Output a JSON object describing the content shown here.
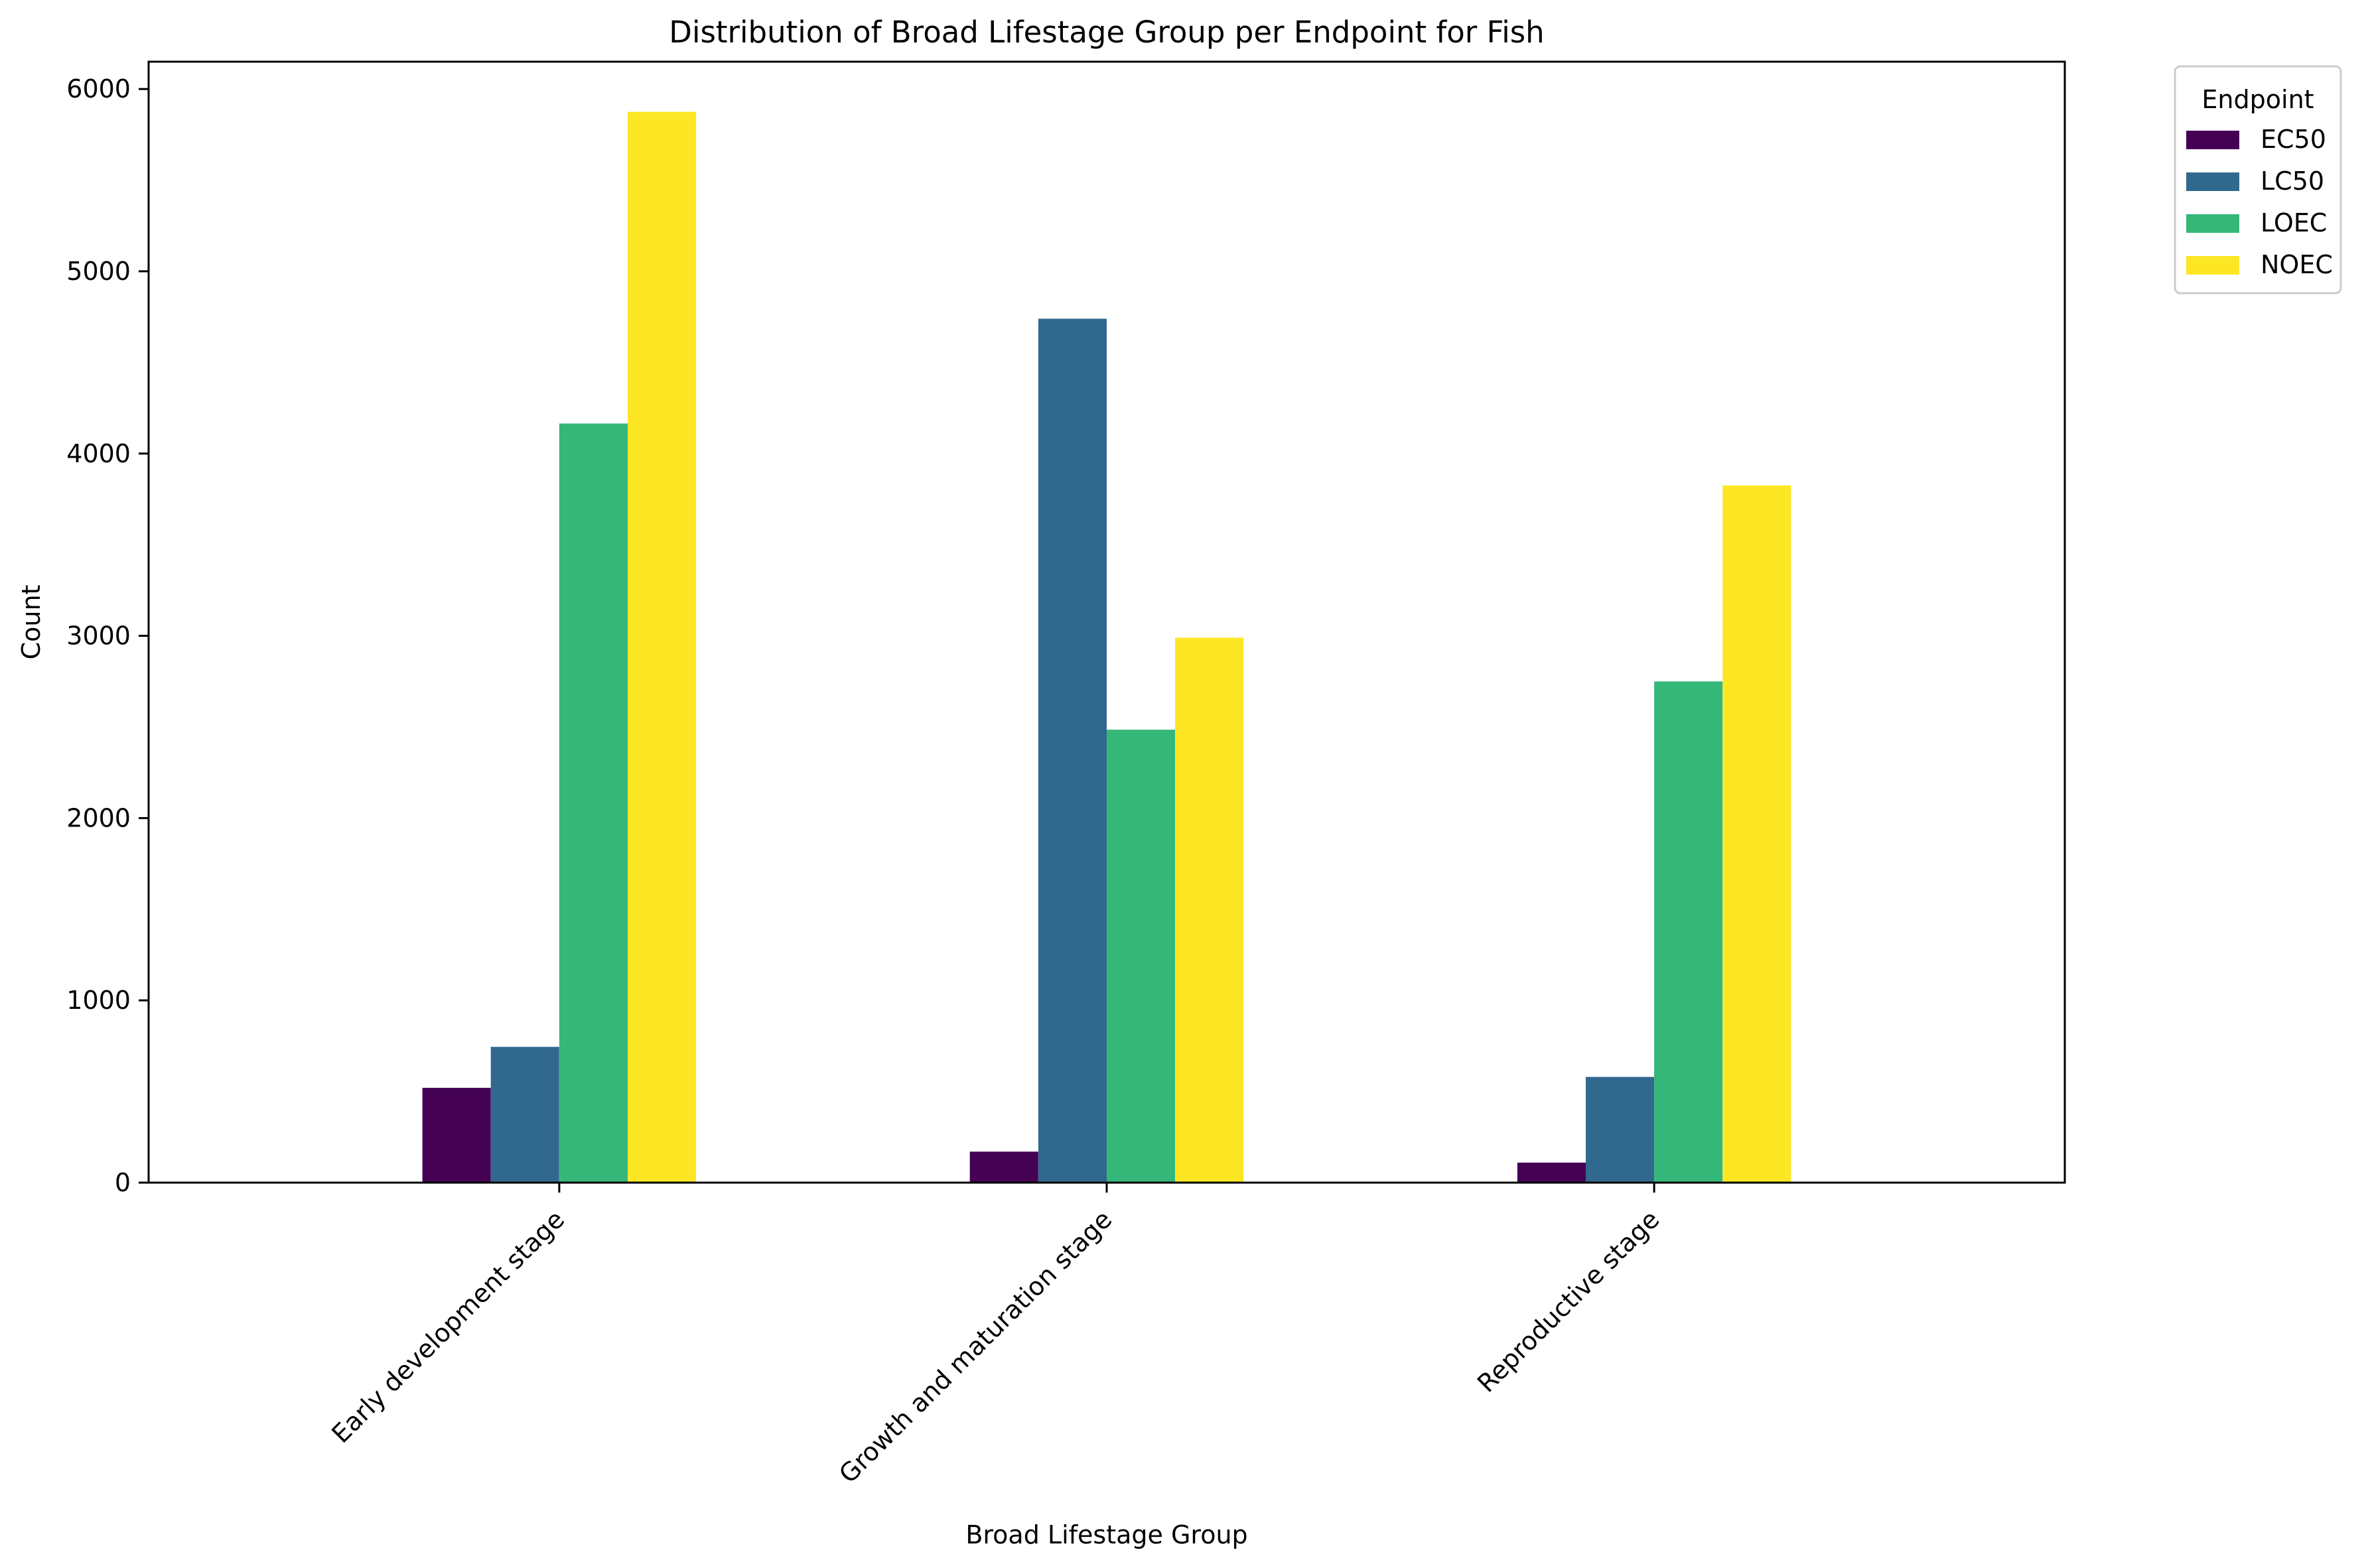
{
  "chart_data": {
    "type": "bar",
    "title": "Distribution of Broad Lifestage Group per Endpoint for Fish",
    "xlabel": "Broad Lifestage Group",
    "ylabel": "Count",
    "categories": [
      "Early development stage",
      "Growth and maturation stage",
      "Reproductive stage"
    ],
    "series": [
      {
        "name": "EC50",
        "color": "#440154",
        "values": [
          520,
          170,
          110
        ]
      },
      {
        "name": "LC50",
        "color": "#31688e",
        "values": [
          745,
          4740,
          580
        ]
      },
      {
        "name": "LOEC",
        "color": "#35b779",
        "values": [
          4165,
          2485,
          2750
        ]
      },
      {
        "name": "NOEC",
        "color": "#fde725",
        "values": [
          5875,
          2990,
          3825
        ]
      }
    ],
    "ylim": [
      0,
      6150
    ],
    "yticks": [
      0,
      1000,
      2000,
      3000,
      4000,
      5000,
      6000
    ],
    "grid": false,
    "legend": {
      "title": "Endpoint",
      "placement": "outside-top-right"
    }
  }
}
